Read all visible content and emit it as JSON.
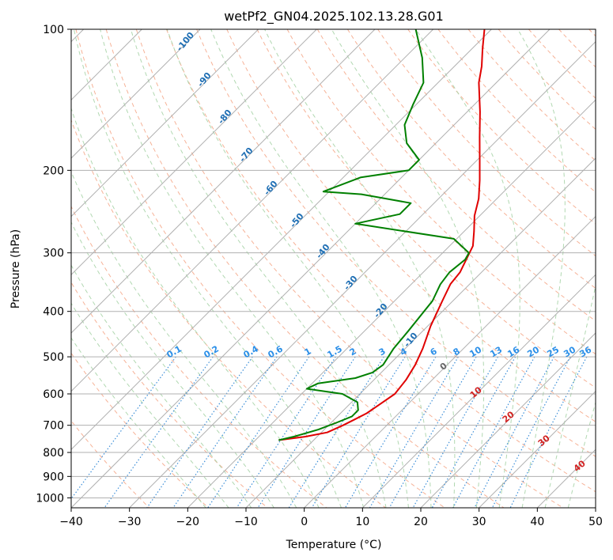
{
  "chart_data": {
    "type": "line",
    "title": "wetPf2_GN04.2025.102.13.28.G01",
    "xlabel": "Temperature (°C)",
    "ylabel": "Pressure (hPa)",
    "xlim": [
      -40,
      50
    ],
    "ylim": [
      1050,
      100
    ],
    "yscale": "log",
    "x_ticks": [
      -40,
      -30,
      -20,
      -10,
      0,
      10,
      20,
      30,
      40,
      50
    ],
    "y_ticks": [
      100,
      200,
      300,
      400,
      500,
      600,
      700,
      800,
      900,
      1000
    ],
    "grid": true,
    "skew": true,
    "series": [
      {
        "kind": "temperature",
        "color": "#e00000",
        "points": [
          [
            -16.0,
            753
          ],
          [
            -12.0,
            740
          ],
          [
            -9.0,
            725
          ],
          [
            -7.5,
            700
          ],
          [
            -6.5,
            680
          ],
          [
            -5.5,
            660
          ],
          [
            -5.0,
            640
          ],
          [
            -4.0,
            600
          ],
          [
            -4.5,
            560
          ],
          [
            -5.5,
            520
          ],
          [
            -7.0,
            480
          ],
          [
            -9.5,
            430
          ],
          [
            -11.8,
            380
          ],
          [
            -13.3,
            350
          ],
          [
            -13.7,
            330
          ],
          [
            -14.8,
            310
          ],
          [
            -16.0,
            290
          ],
          [
            -18.3,
            270
          ],
          [
            -20.9,
            250
          ],
          [
            -23.1,
            230
          ],
          [
            -26.1,
            210
          ],
          [
            -29.6,
            190
          ],
          [
            -33.5,
            170
          ],
          [
            -37.8,
            150
          ],
          [
            -43.0,
            130
          ],
          [
            -45.3,
            120
          ],
          [
            -48.2,
            110
          ],
          [
            -51.2,
            100
          ]
        ]
      },
      {
        "kind": "dewpoint",
        "color": "#008000",
        "points": [
          [
            -16.0,
            753
          ],
          [
            -14.0,
            740
          ],
          [
            -11.0,
            715
          ],
          [
            -9.0,
            690
          ],
          [
            -7.5,
            670
          ],
          [
            -7.5,
            650
          ],
          [
            -9.0,
            625
          ],
          [
            -13.0,
            600
          ],
          [
            -20.0,
            585
          ],
          [
            -19.0,
            570
          ],
          [
            -13.5,
            555
          ],
          [
            -11.5,
            540
          ],
          [
            -11.0,
            520
          ],
          [
            -12.0,
            480
          ],
          [
            -12.5,
            440
          ],
          [
            -13.5,
            380
          ],
          [
            -15.0,
            350
          ],
          [
            -15.5,
            330
          ],
          [
            -15.0,
            310
          ],
          [
            -15.5,
            300
          ],
          [
            -20.5,
            280
          ],
          [
            -40.0,
            260
          ],
          [
            -34.0,
            248
          ],
          [
            -34.0,
            235
          ],
          [
            -44.0,
            225
          ],
          [
            -51.0,
            222
          ],
          [
            -47.0,
            207
          ],
          [
            -40.0,
            200
          ],
          [
            -40.0,
            190
          ],
          [
            -45.0,
            175
          ],
          [
            -48.5,
            160
          ],
          [
            -50.5,
            145
          ],
          [
            -52.5,
            130
          ],
          [
            -57.0,
            115
          ],
          [
            -63.0,
            100
          ]
        ]
      }
    ],
    "annotations": {
      "dry_adiabats": [
        "-100",
        "-90",
        "-80",
        "-70",
        "-60",
        "-50",
        "-40",
        "-30",
        "-20",
        "-10"
      ],
      "mixing_ratios": [
        "0.1",
        "0.2",
        "0.4",
        "0.6",
        "1",
        "1.5",
        "2",
        "3",
        "4",
        "6",
        "8",
        "10",
        "13",
        "16",
        "20",
        "25",
        "30",
        "36"
      ],
      "moist_adiabats": [
        "0",
        "10",
        "20",
        "30",
        "40"
      ]
    },
    "colors": {
      "isotherm": "#b0b0b0",
      "dry_adiabat": "#f5a585",
      "moist_adiabat": "#a8d4a8",
      "mixing_ratio": "#3d8fd8",
      "dry_label": "#1f6fb4",
      "mixing_label": "#2b8fe8",
      "moist_label": "#d22222"
    }
  }
}
